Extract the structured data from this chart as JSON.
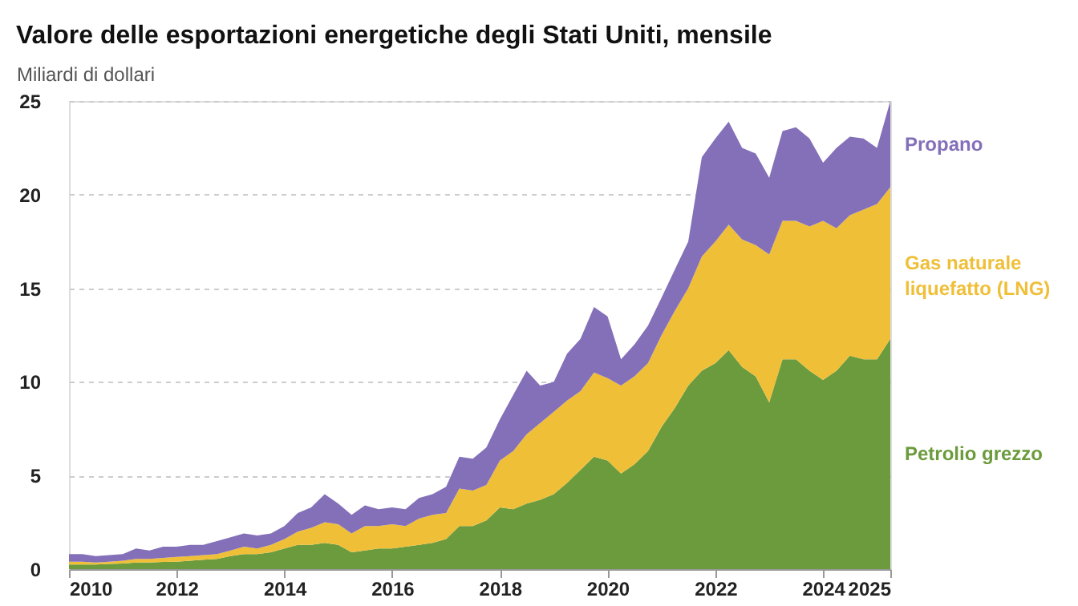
{
  "chart_data": {
    "type": "area",
    "stacked": true,
    "title": "Valore delle esportazioni energetiche degli Stati Uniti, mensile",
    "ylabel": "Miliardi di dollari",
    "x": [
      "2010-01",
      "2010-04",
      "2010-07",
      "2010-10",
      "2011-01",
      "2011-04",
      "2011-07",
      "2011-10",
      "2012-01",
      "2012-04",
      "2012-07",
      "2012-10",
      "2013-01",
      "2013-04",
      "2013-07",
      "2013-10",
      "2014-01",
      "2014-04",
      "2014-07",
      "2014-10",
      "2015-01",
      "2015-04",
      "2015-07",
      "2015-10",
      "2016-01",
      "2016-04",
      "2016-07",
      "2016-10",
      "2017-01",
      "2017-04",
      "2017-07",
      "2017-10",
      "2018-01",
      "2018-04",
      "2018-07",
      "2018-10",
      "2019-01",
      "2019-04",
      "2019-07",
      "2019-10",
      "2020-01",
      "2020-04",
      "2020-07",
      "2020-10",
      "2021-01",
      "2021-04",
      "2021-07",
      "2021-10",
      "2022-01",
      "2022-04",
      "2022-07",
      "2022-10",
      "2023-01",
      "2023-04",
      "2023-07",
      "2023-10",
      "2024-01",
      "2024-04",
      "2024-07",
      "2024-10",
      "2025-01",
      "2025-04"
    ],
    "series": [
      {
        "name": "Petrolio grezzo",
        "color": "#6b9b3c",
        "values": [
          0.25,
          0.25,
          0.25,
          0.28,
          0.3,
          0.35,
          0.35,
          0.38,
          0.4,
          0.45,
          0.5,
          0.55,
          0.7,
          0.8,
          0.8,
          0.9,
          1.1,
          1.3,
          1.3,
          1.4,
          1.3,
          0.9,
          1.0,
          1.1,
          1.1,
          1.2,
          1.3,
          1.4,
          1.6,
          2.3,
          2.3,
          2.6,
          3.3,
          3.2,
          3.5,
          3.7,
          4.0,
          4.6,
          5.3,
          6.0,
          5.8,
          5.1,
          5.6,
          6.3,
          7.6,
          8.6,
          9.8,
          10.6,
          11.0,
          11.7,
          10.8,
          10.3,
          8.9,
          11.2,
          11.2,
          10.6,
          10.1,
          10.6,
          11.4,
          11.2,
          11.2,
          12.3
        ]
      },
      {
        "name": "Gas naturale liquefatto (LNG)",
        "color": "#efbf38",
        "values": [
          0.15,
          0.15,
          0.1,
          0.12,
          0.15,
          0.2,
          0.2,
          0.22,
          0.25,
          0.25,
          0.25,
          0.25,
          0.3,
          0.4,
          0.3,
          0.4,
          0.5,
          0.7,
          0.9,
          1.1,
          1.1,
          1.0,
          1.3,
          1.2,
          1.3,
          1.1,
          1.4,
          1.5,
          1.4,
          2.0,
          1.9,
          1.9,
          2.5,
          3.1,
          3.7,
          4.1,
          4.4,
          4.4,
          4.2,
          4.5,
          4.4,
          4.7,
          4.7,
          4.7,
          4.9,
          5.2,
          5.2,
          6.1,
          6.5,
          6.7,
          6.8,
          7.0,
          7.9,
          7.4,
          7.4,
          7.7,
          8.5,
          7.6,
          7.5,
          8.0,
          8.3,
          8.1
        ]
      },
      {
        "name": "Propano",
        "color": "#8470b9",
        "values": [
          0.4,
          0.4,
          0.35,
          0.35,
          0.35,
          0.55,
          0.45,
          0.6,
          0.55,
          0.6,
          0.55,
          0.7,
          0.7,
          0.7,
          0.7,
          0.6,
          0.7,
          1.0,
          1.1,
          1.5,
          1.1,
          1.0,
          1.1,
          0.9,
          0.9,
          0.9,
          1.1,
          1.1,
          1.4,
          1.7,
          1.7,
          2.0,
          2.2,
          3.0,
          3.4,
          2.0,
          1.6,
          2.5,
          2.8,
          3.5,
          3.3,
          1.4,
          1.7,
          2.0,
          2.0,
          2.2,
          2.5,
          5.3,
          5.5,
          5.5,
          4.9,
          4.9,
          4.1,
          4.8,
          5.0,
          4.7,
          3.1,
          4.3,
          4.2,
          3.8,
          3.0,
          4.6
        ]
      }
    ],
    "xlim": [
      "2010-01",
      "2025-04"
    ],
    "xticks": [
      "2010",
      "2012",
      "2014",
      "2016",
      "2018",
      "2020",
      "2022",
      "2024",
      {
        "value": "2025-04",
        "label": "2025"
      }
    ],
    "ylim": [
      0,
      25
    ],
    "yticks": [
      0,
      5,
      10,
      15,
      20,
      25
    ],
    "grid": "y"
  }
}
